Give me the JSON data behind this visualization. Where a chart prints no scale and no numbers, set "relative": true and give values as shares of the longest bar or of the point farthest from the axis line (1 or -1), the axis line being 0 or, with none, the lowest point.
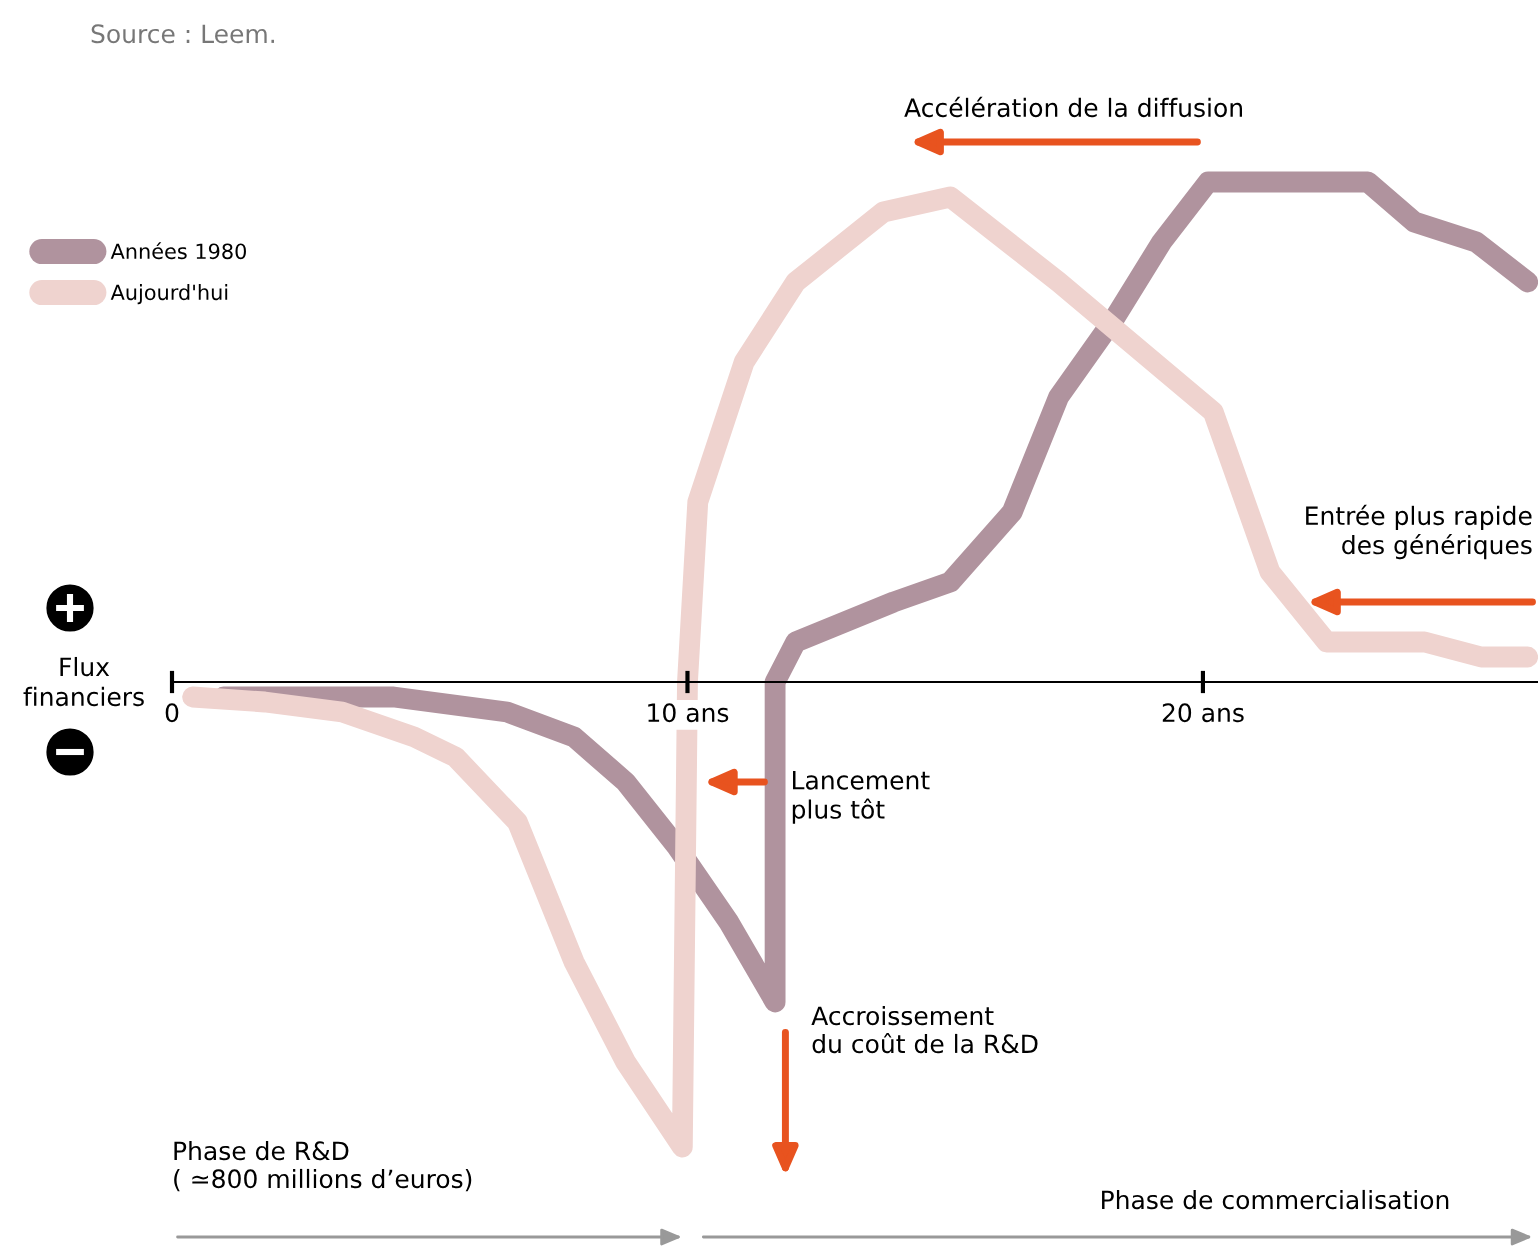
{
  "chart_data": {
    "type": "line",
    "relative": true,
    "ylabel": "Flux\nfinanciers",
    "xlim": [
      0,
      26.5
    ],
    "xticks": [
      0,
      {
        "value": 10,
        "label": "10 ans"
      },
      {
        "value": 20,
        "label": "20 ans"
      }
    ],
    "tick_labels": "x",
    "grid": false,
    "legend": "top left",
    "line_style": "solid",
    "series": [
      {
        "name": "Années 1980",
        "color": "#b0939e",
        "x": [
          1.0,
          4.3,
          6.5,
          7.8,
          8.8,
          9.8,
          10.8,
          11.7,
          11.7,
          12.1,
          14.0,
          15.1,
          16.3,
          17.2,
          18.3,
          19.2,
          20.1,
          23.2,
          24.1,
          25.3,
          26.3
        ],
        "values": [
          -0.03,
          -0.03,
          -0.06,
          -0.11,
          -0.2,
          -0.33,
          -0.48,
          -0.64,
          0,
          0.08,
          0.16,
          0.2,
          0.34,
          0.57,
          0.73,
          0.88,
          1.0,
          1.0,
          0.92,
          0.88,
          0.8
        ]
      },
      {
        "name": "Aujourd'hui",
        "color": "#efd3cf",
        "x": [
          0.4,
          1.8,
          3.3,
          4.7,
          5.5,
          6.7,
          7.8,
          8.8,
          9.9,
          10.0,
          10.2,
          11.1,
          12.1,
          13.8,
          15.1,
          17.2,
          20.2,
          21.3,
          22.4,
          24.3,
          25.4,
          26.3
        ],
        "values": [
          -0.03,
          -0.04,
          -0.06,
          -0.11,
          -0.15,
          -0.28,
          -0.56,
          -0.76,
          -0.93,
          0,
          0.36,
          0.64,
          0.8,
          0.94,
          0.97,
          0.8,
          0.54,
          0.22,
          0.08,
          0.08,
          0.05,
          0.05
        ]
      }
    ],
    "annotations": [
      "Source : Leem.",
      "Accélération de la diffusion",
      "Entrée plus rapide\ndes génériques",
      "Lancement\nplus tôt",
      "Accroissement\ndu coût de la R&D",
      "Phase de R&D\n( ≃800 millions d’euros)",
      "Phase de commercialisation"
    ]
  }
}
